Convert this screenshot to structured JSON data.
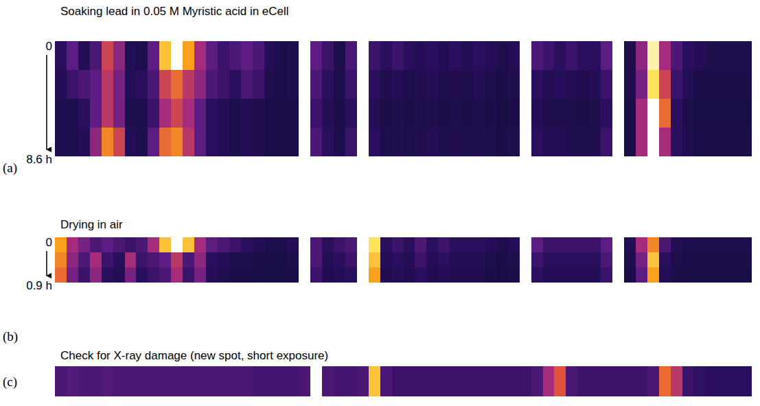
{
  "chart_data": [
    {
      "type": "heatmap",
      "title": "Soaking lead in 0.05 M Myristic acid in eCell",
      "label": "(a)",
      "ylim": [
        0,
        8.6
      ],
      "yticks": [
        0,
        {
          "value": 8.6,
          "label": "8.6 h"
        }
      ],
      "tick_labels": "y",
      "zlim": [
        0,
        1
      ],
      "values": [
        [
          0.2,
          0.35,
          0.15,
          0.3,
          0.6,
          0.45,
          0.15,
          0.1,
          0.35,
          0.85,
          1.0,
          0.8,
          0.5,
          0.35,
          0.25,
          0.3,
          0.35,
          0.3,
          0.15,
          0.08,
          0.1,
          1.0,
          0.35,
          0.25,
          0.1,
          0.3,
          1.0,
          0.25,
          0.2,
          0.25,
          0.2,
          0.15,
          0.2,
          0.15,
          0.2,
          0.15,
          0.2,
          0.15,
          0.1,
          0.15,
          1.0,
          0.3,
          0.25,
          0.2,
          0.25,
          0.2,
          0.2,
          0.35,
          1.0,
          0.1,
          0.45,
          0.95,
          0.5,
          0.3,
          0.2,
          0.15,
          0.1,
          0.1,
          0.1,
          0.1
        ],
        [
          0.15,
          0.25,
          0.3,
          0.35,
          0.55,
          0.4,
          0.15,
          0.2,
          0.3,
          0.6,
          0.7,
          0.55,
          0.45,
          0.3,
          0.25,
          0.2,
          0.3,
          0.25,
          0.1,
          0.08,
          0.1,
          1.0,
          0.3,
          0.2,
          0.1,
          0.25,
          1.0,
          0.2,
          0.12,
          0.15,
          0.1,
          0.12,
          0.15,
          0.1,
          0.12,
          0.1,
          0.15,
          0.1,
          0.08,
          0.1,
          1.0,
          0.2,
          0.15,
          0.18,
          0.15,
          0.12,
          0.15,
          0.25,
          1.0,
          0.1,
          0.4,
          0.9,
          0.6,
          0.25,
          0.15,
          0.08,
          0.08,
          0.08,
          0.08,
          0.08
        ],
        [
          0.1,
          0.1,
          0.2,
          0.35,
          0.55,
          0.4,
          0.1,
          0.1,
          0.25,
          0.5,
          0.6,
          0.5,
          0.35,
          0.2,
          0.15,
          0.1,
          0.15,
          0.12,
          0.08,
          0.05,
          0.08,
          1.0,
          0.25,
          0.15,
          0.08,
          0.2,
          1.0,
          0.15,
          0.08,
          0.1,
          0.08,
          0.1,
          0.12,
          0.08,
          0.1,
          0.08,
          0.1,
          0.08,
          0.05,
          0.08,
          1.0,
          0.15,
          0.1,
          0.12,
          0.1,
          0.08,
          0.1,
          0.2,
          1.0,
          0.08,
          0.5,
          1.0,
          0.7,
          0.2,
          0.1,
          0.06,
          0.06,
          0.06,
          0.06,
          0.06
        ],
        [
          0.1,
          0.1,
          0.15,
          0.45,
          0.75,
          0.6,
          0.15,
          0.1,
          0.35,
          0.7,
          0.75,
          0.55,
          0.35,
          0.2,
          0.15,
          0.1,
          0.15,
          0.12,
          0.08,
          0.05,
          0.08,
          1.0,
          0.3,
          0.2,
          0.1,
          0.25,
          1.0,
          0.2,
          0.1,
          0.12,
          0.1,
          0.12,
          0.15,
          0.1,
          0.12,
          0.1,
          0.12,
          0.1,
          0.08,
          0.1,
          1.0,
          0.2,
          0.15,
          0.15,
          0.12,
          0.1,
          0.12,
          0.25,
          1.0,
          0.08,
          0.5,
          1.0,
          0.5,
          0.2,
          0.12,
          0.08,
          0.08,
          0.08,
          0.08,
          0.08
        ]
      ]
    },
    {
      "type": "heatmap",
      "title": "Drying in air",
      "label": "(b)",
      "ylim": [
        0,
        0.9
      ],
      "yticks": [
        0,
        {
          "value": 0.9,
          "label": "0.9 h"
        }
      ],
      "tick_labels": "y",
      "zlim": [
        0,
        1
      ],
      "values": [
        [
          0.8,
          0.5,
          0.4,
          0.3,
          0.35,
          0.3,
          0.25,
          0.3,
          0.5,
          0.85,
          1.0,
          0.85,
          0.5,
          0.35,
          0.3,
          0.25,
          0.2,
          0.15,
          0.1,
          0.1,
          0.15,
          1.0,
          0.3,
          0.2,
          0.25,
          0.3,
          1.0,
          0.9,
          0.2,
          0.25,
          0.2,
          0.3,
          0.2,
          0.25,
          0.2,
          0.2,
          0.2,
          0.15,
          0.1,
          0.15,
          1.0,
          0.35,
          0.25,
          0.25,
          0.25,
          0.25,
          0.25,
          0.35,
          1.0,
          0.15,
          0.5,
          0.75,
          0.3,
          0.15,
          0.1,
          0.1,
          0.1,
          0.1,
          0.1,
          0.1
        ],
        [
          0.75,
          0.45,
          0.3,
          0.5,
          0.25,
          0.2,
          0.5,
          0.25,
          0.3,
          0.35,
          0.55,
          0.3,
          0.45,
          0.2,
          0.15,
          0.1,
          0.1,
          0.08,
          0.06,
          0.06,
          0.1,
          1.0,
          0.3,
          0.15,
          0.2,
          0.25,
          1.0,
          0.85,
          0.15,
          0.2,
          0.15,
          0.25,
          0.15,
          0.2,
          0.15,
          0.15,
          0.15,
          0.1,
          0.08,
          0.1,
          1.0,
          0.25,
          0.2,
          0.2,
          0.2,
          0.2,
          0.2,
          0.3,
          1.0,
          0.1,
          0.4,
          0.85,
          0.2,
          0.1,
          0.08,
          0.08,
          0.08,
          0.08,
          0.08,
          0.08
        ],
        [
          0.7,
          0.4,
          0.25,
          0.45,
          0.2,
          0.15,
          0.4,
          0.2,
          0.25,
          0.3,
          0.5,
          0.25,
          0.4,
          0.15,
          0.1,
          0.08,
          0.08,
          0.06,
          0.05,
          0.05,
          0.08,
          1.0,
          0.25,
          0.12,
          0.15,
          0.2,
          1.0,
          0.8,
          0.12,
          0.15,
          0.12,
          0.2,
          0.12,
          0.15,
          0.12,
          0.12,
          0.12,
          0.08,
          0.06,
          0.08,
          1.0,
          0.2,
          0.15,
          0.15,
          0.15,
          0.15,
          0.15,
          0.25,
          1.0,
          0.08,
          0.35,
          0.8,
          0.15,
          0.08,
          0.06,
          0.06,
          0.06,
          0.06,
          0.06,
          0.06
        ]
      ]
    },
    {
      "type": "heatmap",
      "title": "Check for X-ray damage (new spot, short exposure)",
      "label": "(c)",
      "tick_labels": false,
      "zlim": [
        0,
        1
      ],
      "values": [
        [
          0.3,
          0.32,
          0.3,
          0.3,
          0.32,
          0.3,
          0.3,
          0.3,
          0.3,
          0.3,
          0.3,
          0.3,
          0.3,
          0.3,
          0.3,
          0.3,
          0.3,
          0.28,
          0.28,
          0.28,
          0.28,
          0.3,
          1.0,
          0.3,
          0.28,
          0.28,
          0.3,
          0.85,
          0.3,
          0.25,
          0.25,
          0.25,
          0.25,
          0.25,
          0.25,
          0.25,
          0.25,
          0.25,
          0.25,
          0.25,
          0.25,
          0.3,
          0.5,
          0.65,
          0.3,
          0.25,
          0.25,
          0.25,
          0.25,
          0.25,
          0.25,
          0.3,
          0.7,
          0.55,
          0.25,
          0.22,
          0.2,
          0.2,
          0.2,
          0.2
        ]
      ]
    }
  ]
}
